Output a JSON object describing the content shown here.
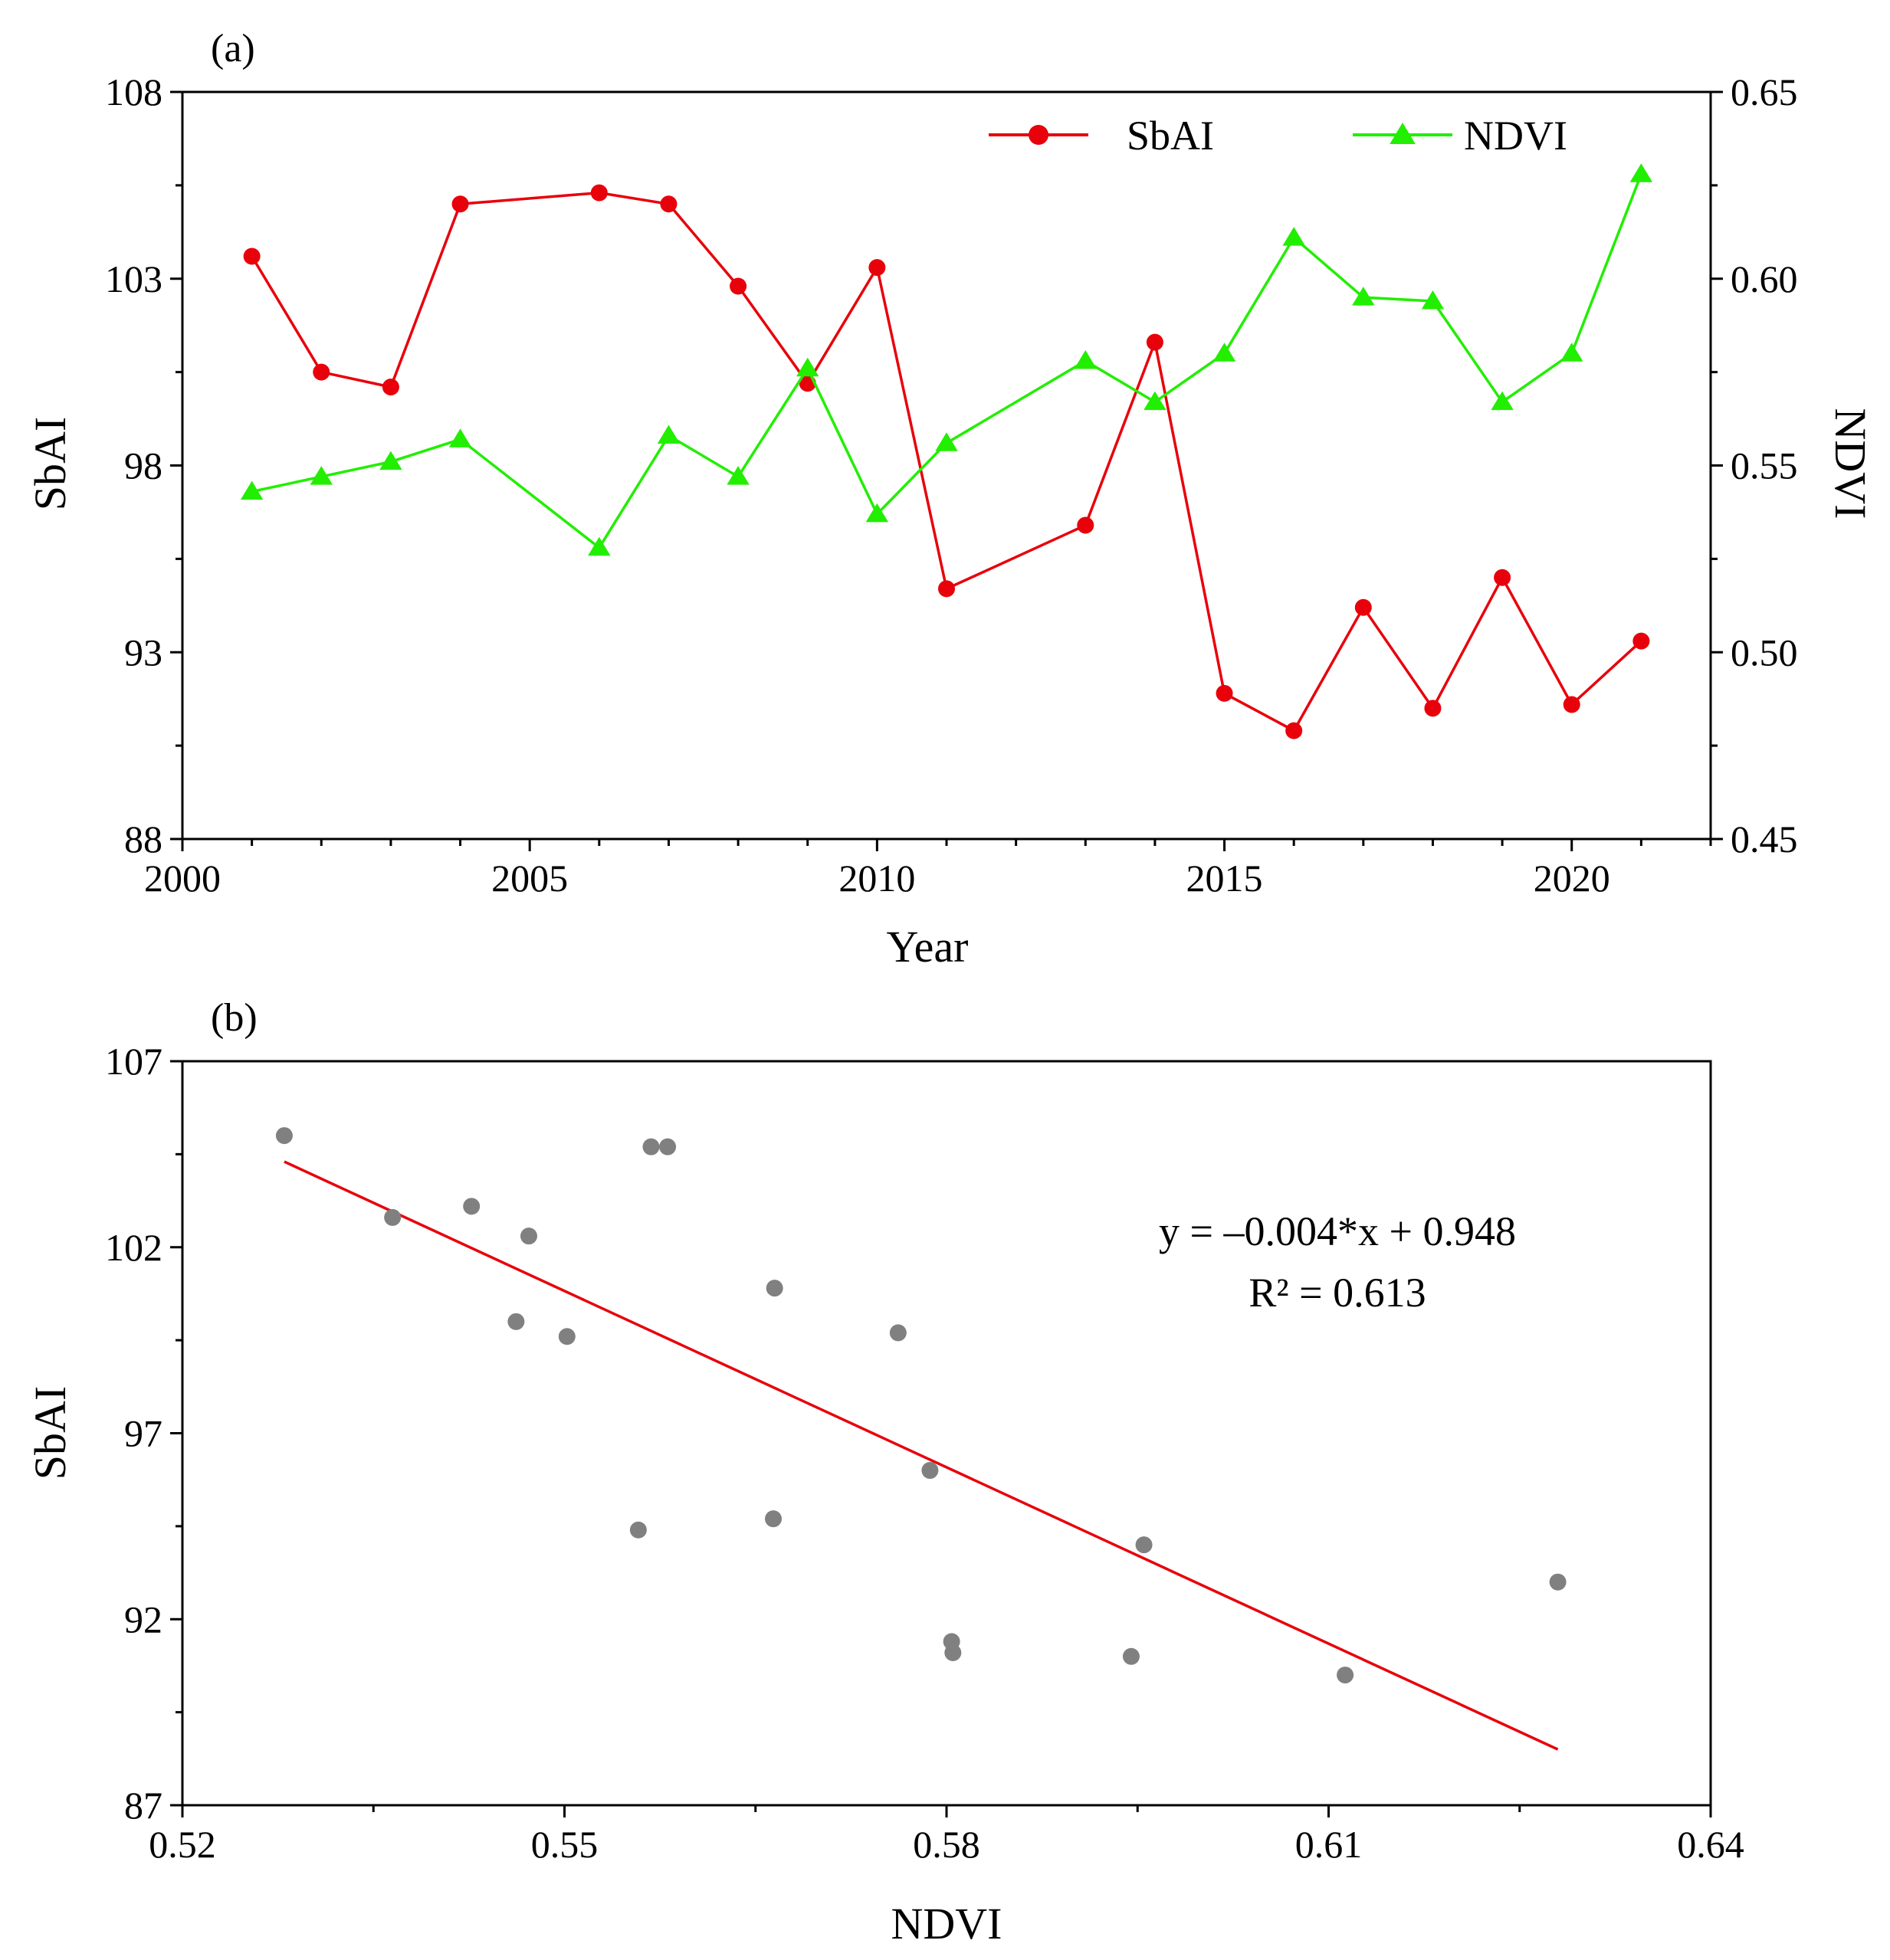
{
  "chart_data": [
    {
      "panel": "(a)",
      "type": "line",
      "xlabel": "Year",
      "ylabel": "SbAI",
      "y2label": "NDVI",
      "xlim": [
        2000,
        2022
      ],
      "ylim": [
        88,
        108
      ],
      "y2lim": [
        0.45,
        0.65
      ],
      "x_ticks": [
        2000,
        2005,
        2010,
        2015,
        2020
      ],
      "y_ticks": [
        88,
        93,
        98,
        103,
        108
      ],
      "y2_ticks": [
        "0.45",
        "0.50",
        "0.55",
        "0.60",
        "0.65"
      ],
      "legend_position": "top-right",
      "series": [
        {
          "name": "SbAI",
          "axis": "left",
          "color": "#e8000b",
          "marker": "circle",
          "x": [
            2001,
            2002,
            2003,
            2004,
            2006,
            2007,
            2008,
            2009,
            2010,
            2011,
            2013,
            2014,
            2015,
            2016,
            2017,
            2018,
            2019,
            2020,
            2021
          ],
          "values": [
            103.6,
            100.5,
            100.1,
            105.0,
            105.3,
            105.0,
            102.8,
            100.2,
            103.3,
            94.7,
            96.4,
            101.3,
            91.9,
            90.9,
            94.2,
            91.5,
            95.0,
            91.6,
            93.3
          ]
        },
        {
          "name": "NDVI",
          "axis": "right",
          "color": "#22ee00",
          "marker": "triangle",
          "x": [
            2001,
            2002,
            2003,
            2004,
            2006,
            2007,
            2008,
            2009,
            2010,
            2011,
            2013,
            2014,
            2015,
            2016,
            2017,
            2018,
            2019,
            2020,
            2021
          ],
          "values": [
            0.543,
            0.547,
            0.551,
            0.557,
            0.528,
            0.558,
            0.547,
            0.576,
            0.537,
            0.556,
            0.578,
            0.567,
            0.58,
            0.611,
            0.595,
            0.594,
            0.567,
            0.58,
            0.628
          ]
        }
      ]
    },
    {
      "panel": "(b)",
      "type": "scatter",
      "xlabel": "NDVI",
      "ylabel": "SbAI",
      "xlim": [
        0.52,
        0.64
      ],
      "ylim": [
        87,
        107
      ],
      "x_ticks": [
        "0.52",
        "0.55",
        "0.58",
        "0.61",
        "0.64"
      ],
      "y_ticks": [
        87,
        92,
        97,
        102,
        107
      ],
      "point_color": "#808080",
      "line_color": "#e8000b",
      "annotation": {
        "equation": "y = –0.004*x + 0.948",
        "r2": "R² = 0.613"
      },
      "fit_line": {
        "x": [
          0.528,
          0.628
        ],
        "y": [
          104.3,
          88.5
        ]
      },
      "points": {
        "x": [
          0.528,
          0.5365,
          0.5427,
          0.5472,
          0.5462,
          0.5502,
          0.5568,
          0.5581,
          0.5558,
          0.5665,
          0.5664,
          0.5762,
          0.5787,
          0.5804,
          0.5805,
          0.5945,
          0.5955,
          0.6113,
          0.628
        ],
        "y": [
          105.0,
          102.8,
          103.1,
          102.3,
          100.0,
          99.6,
          104.7,
          104.7,
          94.4,
          100.9,
          94.7,
          99.7,
          96.0,
          91.4,
          91.1,
          91.0,
          94.0,
          90.5,
          93.0
        ]
      }
    }
  ]
}
